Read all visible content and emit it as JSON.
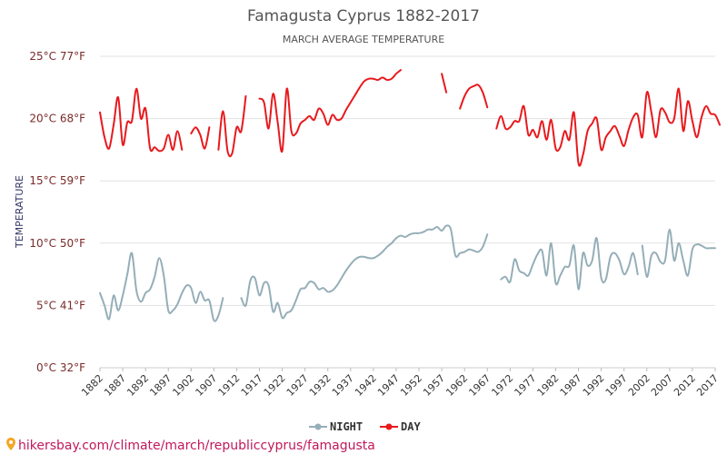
{
  "chart_data": {
    "type": "line",
    "title": "Famagusta Cyprus 1882-2017",
    "subtitle": "MARCH AVERAGE TEMPERATURE",
    "ylabel": "TEMPERATURE",
    "ylim": [
      0,
      25
    ],
    "xlim": [
      1882,
      2017
    ],
    "yticks": [
      {
        "value": 0,
        "label": "0°C 32°F"
      },
      {
        "value": 5,
        "label": "5°C 41°F"
      },
      {
        "value": 10,
        "label": "10°C 50°F"
      },
      {
        "value": 15,
        "label": "15°C 59°F"
      },
      {
        "value": 20,
        "label": "20°C 68°F"
      },
      {
        "value": 25,
        "label": "25°C 77°F"
      }
    ],
    "xticks": [
      "1882",
      "1887",
      "1892",
      "1897",
      "1902",
      "1907",
      "1912",
      "1917",
      "1922",
      "1927",
      "1932",
      "1937",
      "1942",
      "1947",
      "1952",
      "1957",
      "1962",
      "1967",
      "1972",
      "1977",
      "1982",
      "1987",
      "1992",
      "1997",
      "2002",
      "2007",
      "2012",
      "2017"
    ],
    "series": [
      {
        "name": "NIGHT",
        "color": "#95aeb8",
        "segments": [
          [
            [
              1882,
              6.0
            ],
            [
              1883,
              5.0
            ],
            [
              1884,
              3.9
            ],
            [
              1885,
              5.8
            ],
            [
              1886,
              4.6
            ],
            [
              1887,
              5.8
            ],
            [
              1888,
              7.5
            ],
            [
              1889,
              9.2
            ],
            [
              1890,
              6.2
            ],
            [
              1891,
              5.3
            ],
            [
              1892,
              6.0
            ],
            [
              1893,
              6.3
            ],
            [
              1894,
              7.3
            ],
            [
              1895,
              8.8
            ],
            [
              1896,
              7.4
            ],
            [
              1897,
              4.6
            ],
            [
              1898,
              4.6
            ],
            [
              1899,
              5.1
            ],
            [
              1900,
              6.0
            ],
            [
              1901,
              6.6
            ],
            [
              1902,
              6.4
            ],
            [
              1903,
              5.2
            ],
            [
              1904,
              6.1
            ],
            [
              1905,
              5.4
            ],
            [
              1906,
              5.4
            ],
            [
              1907,
              3.8
            ],
            [
              1908,
              4.2
            ],
            [
              1909,
              5.6
            ]
          ],
          [
            [
              1913,
              5.6
            ],
            [
              1914,
              5.0
            ],
            [
              1915,
              7.0
            ],
            [
              1916,
              7.2
            ],
            [
              1917,
              5.8
            ],
            [
              1918,
              6.8
            ],
            [
              1919,
              6.6
            ],
            [
              1920,
              4.5
            ],
            [
              1921,
              5.2
            ],
            [
              1922,
              4.0
            ],
            [
              1923,
              4.4
            ],
            [
              1924,
              4.6
            ],
            [
              1925,
              5.4
            ],
            [
              1926,
              6.3
            ],
            [
              1927,
              6.4
            ],
            [
              1928,
              6.9
            ],
            [
              1929,
              6.8
            ],
            [
              1930,
              6.3
            ],
            [
              1931,
              6.4
            ],
            [
              1932,
              6.1
            ],
            [
              1933,
              6.2
            ],
            [
              1934,
              6.6
            ],
            [
              1935,
              7.2
            ],
            [
              1936,
              7.8
            ],
            [
              1937,
              8.3
            ],
            [
              1938,
              8.7
            ],
            [
              1939,
              8.9
            ],
            [
              1940,
              8.9
            ],
            [
              1941,
              8.8
            ],
            [
              1942,
              8.8
            ],
            [
              1943,
              9.0
            ],
            [
              1944,
              9.3
            ],
            [
              1945,
              9.7
            ],
            [
              1946,
              10.0
            ],
            [
              1947,
              10.4
            ],
            [
              1948,
              10.6
            ],
            [
              1949,
              10.5
            ],
            [
              1950,
              10.7
            ],
            [
              1951,
              10.8
            ],
            [
              1952,
              10.8
            ],
            [
              1953,
              10.9
            ],
            [
              1954,
              11.1
            ],
            [
              1955,
              11.1
            ],
            [
              1956,
              11.3
            ],
            [
              1957,
              11.0
            ],
            [
              1958,
              11.4
            ],
            [
              1959,
              11.1
            ],
            [
              1960,
              9.0
            ],
            [
              1961,
              9.2
            ],
            [
              1962,
              9.3
            ],
            [
              1963,
              9.5
            ],
            [
              1964,
              9.4
            ],
            [
              1965,
              9.3
            ],
            [
              1966,
              9.7
            ],
            [
              1967,
              10.7
            ]
          ],
          [
            [
              1970,
              7.1
            ],
            [
              1971,
              7.3
            ],
            [
              1972,
              6.9
            ],
            [
              1973,
              8.7
            ],
            [
              1974,
              7.8
            ],
            [
              1975,
              7.6
            ],
            [
              1976,
              7.4
            ],
            [
              1977,
              8.3
            ],
            [
              1978,
              9.1
            ],
            [
              1979,
              9.4
            ],
            [
              1980,
              7.4
            ],
            [
              1981,
              10.0
            ],
            [
              1982,
              6.8
            ],
            [
              1983,
              7.4
            ],
            [
              1984,
              8.1
            ],
            [
              1985,
              8.2
            ],
            [
              1986,
              9.8
            ],
            [
              1987,
              6.3
            ],
            [
              1988,
              9.2
            ],
            [
              1989,
              8.2
            ],
            [
              1990,
              8.6
            ],
            [
              1991,
              10.4
            ],
            [
              1992,
              7.2
            ],
            [
              1993,
              7.1
            ],
            [
              1994,
              8.9
            ],
            [
              1995,
              9.2
            ],
            [
              1996,
              8.6
            ],
            [
              1997,
              7.5
            ],
            [
              1998,
              8.1
            ],
            [
              1999,
              9.2
            ],
            [
              2000,
              7.5
            ]
          ],
          [
            [
              2001,
              9.8
            ],
            [
              2002,
              7.3
            ],
            [
              2003,
              9.0
            ],
            [
              2004,
              9.2
            ],
            [
              2005,
              8.5
            ],
            [
              2006,
              8.6
            ],
            [
              2007,
              11.1
            ],
            [
              2008,
              8.6
            ],
            [
              2009,
              10.0
            ],
            [
              2010,
              8.6
            ],
            [
              2011,
              7.4
            ],
            [
              2012,
              9.5
            ],
            [
              2013,
              9.9
            ],
            [
              2014,
              9.8
            ],
            [
              2015,
              9.6
            ],
            [
              2016,
              9.6
            ],
            [
              2017,
              9.6
            ]
          ]
        ]
      },
      {
        "name": "DAY",
        "color": "#e8191d",
        "segments": [
          [
            [
              1882,
              20.5
            ],
            [
              1883,
              18.5
            ],
            [
              1884,
              17.6
            ],
            [
              1885,
              19.5
            ],
            [
              1886,
              21.7
            ],
            [
              1887,
              17.9
            ],
            [
              1888,
              19.7
            ],
            [
              1889,
              19.8
            ],
            [
              1890,
              22.4
            ],
            [
              1891,
              20.0
            ],
            [
              1892,
              20.8
            ],
            [
              1893,
              17.6
            ],
            [
              1894,
              17.7
            ],
            [
              1895,
              17.4
            ],
            [
              1896,
              17.6
            ],
            [
              1897,
              18.7
            ],
            [
              1898,
              17.5
            ],
            [
              1899,
              19.0
            ],
            [
              1900,
              17.5
            ]
          ],
          [
            [
              1902,
              18.8
            ],
            [
              1903,
              19.3
            ],
            [
              1904,
              18.7
            ],
            [
              1905,
              17.6
            ],
            [
              1906,
              19.3
            ]
          ],
          [
            [
              1908,
              17.5
            ],
            [
              1909,
              20.6
            ],
            [
              1910,
              17.4
            ],
            [
              1911,
              17.2
            ],
            [
              1912,
              19.3
            ],
            [
              1913,
              19.0
            ],
            [
              1914,
              21.8
            ]
          ],
          [
            [
              1917,
              21.6
            ],
            [
              1918,
              21.3
            ],
            [
              1919,
              19.2
            ],
            [
              1920,
              22.0
            ],
            [
              1921,
              19.7
            ],
            [
              1922,
              17.4
            ],
            [
              1923,
              22.4
            ],
            [
              1924,
              19.0
            ],
            [
              1925,
              18.8
            ],
            [
              1926,
              19.6
            ],
            [
              1927,
              19.9
            ],
            [
              1928,
              20.2
            ],
            [
              1929,
              19.9
            ],
            [
              1930,
              20.8
            ],
            [
              1931,
              20.4
            ],
            [
              1932,
              19.5
            ],
            [
              1933,
              20.3
            ],
            [
              1934,
              19.9
            ],
            [
              1935,
              20.0
            ],
            [
              1936,
              20.7
            ],
            [
              1937,
              21.3
            ],
            [
              1938,
              21.9
            ],
            [
              1939,
              22.5
            ],
            [
              1940,
              23.0
            ],
            [
              1941,
              23.2
            ],
            [
              1942,
              23.2
            ],
            [
              1943,
              23.1
            ],
            [
              1944,
              23.3
            ],
            [
              1945,
              23.1
            ],
            [
              1946,
              23.2
            ],
            [
              1947,
              23.6
            ],
            [
              1948,
              23.9
            ]
          ],
          [
            [
              1957,
              23.6
            ],
            [
              1958,
              22.1
            ]
          ],
          [
            [
              1961,
              20.8
            ],
            [
              1962,
              21.8
            ],
            [
              1963,
              22.4
            ],
            [
              1964,
              22.6
            ],
            [
              1965,
              22.7
            ],
            [
              1966,
              22.1
            ],
            [
              1967,
              20.9
            ]
          ],
          [
            [
              1969,
              19.2
            ],
            [
              1970,
              20.2
            ],
            [
              1971,
              19.2
            ],
            [
              1972,
              19.3
            ],
            [
              1973,
              19.8
            ],
            [
              1974,
              19.8
            ],
            [
              1975,
              21.0
            ],
            [
              1976,
              18.7
            ],
            [
              1977,
              19.1
            ],
            [
              1978,
              18.5
            ],
            [
              1979,
              19.8
            ],
            [
              1980,
              18.3
            ],
            [
              1981,
              19.9
            ],
            [
              1982,
              17.6
            ],
            [
              1983,
              17.7
            ],
            [
              1984,
              19.0
            ],
            [
              1985,
              18.3
            ],
            [
              1986,
              20.5
            ],
            [
              1987,
              16.4
            ],
            [
              1988,
              17.1
            ],
            [
              1989,
              19.0
            ],
            [
              1990,
              19.6
            ],
            [
              1991,
              20.0
            ],
            [
              1992,
              17.5
            ],
            [
              1993,
              18.5
            ],
            [
              1994,
              19.0
            ],
            [
              1995,
              19.4
            ],
            [
              1996,
              18.6
            ],
            [
              1997,
              17.8
            ],
            [
              1998,
              19.1
            ],
            [
              1999,
              20.1
            ],
            [
              2000,
              20.3
            ],
            [
              2001,
              18.5
            ],
            [
              2002,
              22.1
            ],
            [
              2003,
              20.5
            ],
            [
              2004,
              18.5
            ],
            [
              2005,
              20.7
            ],
            [
              2006,
              20.5
            ],
            [
              2007,
              19.7
            ],
            [
              2008,
              20.0
            ],
            [
              2009,
              22.4
            ],
            [
              2010,
              19.0
            ],
            [
              2011,
              21.4
            ],
            [
              2012,
              19.8
            ],
            [
              2013,
              18.5
            ],
            [
              2014,
              20.1
            ],
            [
              2015,
              21.0
            ],
            [
              2016,
              20.4
            ],
            [
              2017,
              20.3
            ],
            [
              2018,
              19.5
            ]
          ]
        ]
      }
    ],
    "legend": {
      "placement": "bottom-center"
    }
  },
  "source_text": "hikersbay.com/climate/march/republiccyprus/famagusta"
}
